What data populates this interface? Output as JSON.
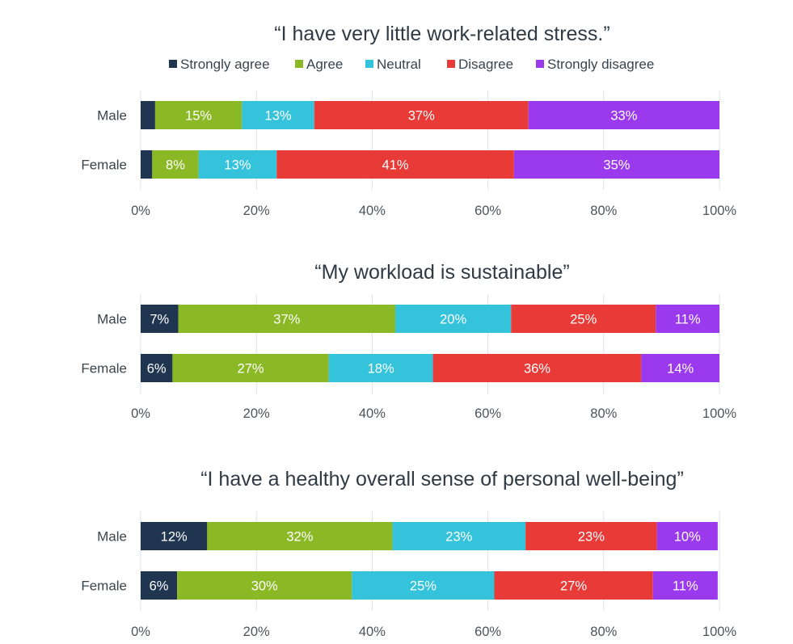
{
  "legend": [
    {
      "label": "Strongly agree",
      "color": "#1f3550"
    },
    {
      "label": "Agree",
      "color": "#8bb925"
    },
    {
      "label": "Neutral",
      "color": "#35c3dc"
    },
    {
      "label": "Disagree",
      "color": "#e83a36"
    },
    {
      "label": "Strongly disagree",
      "color": "#9b3aed"
    }
  ],
  "chart_data": [
    {
      "type": "bar",
      "orientation": "horizontal",
      "stacked": true,
      "title": "“I have very little work-related stress.”",
      "categories": [
        "Male",
        "Female"
      ],
      "series": [
        {
          "name": "Strongly agree",
          "values": [
            2.5,
            2
          ],
          "labels": [
            "",
            ""
          ]
        },
        {
          "name": "Agree",
          "values": [
            15,
            8
          ],
          "labels": [
            "15%",
            "8%"
          ]
        },
        {
          "name": "Neutral",
          "values": [
            12.5,
            13.5
          ],
          "labels": [
            "13%",
            "13%"
          ]
        },
        {
          "name": "Disagree",
          "values": [
            37,
            41
          ],
          "labels": [
            "37%",
            "41%"
          ]
        },
        {
          "name": "Strongly disagree",
          "values": [
            33,
            35.5
          ],
          "labels": [
            "33%",
            "35%"
          ]
        }
      ],
      "xlim": [
        0,
        100
      ],
      "xticks": [
        "0%",
        "20%",
        "40%",
        "60%",
        "80%",
        "100%"
      ],
      "grid": true,
      "legend_position": "top"
    },
    {
      "type": "bar",
      "orientation": "horizontal",
      "stacked": true,
      "title": "“My workload is sustainable”",
      "categories": [
        "Male",
        "Female"
      ],
      "series": [
        {
          "name": "Strongly agree",
          "values": [
            6.5,
            5.5
          ],
          "labels": [
            "7%",
            "6%"
          ]
        },
        {
          "name": "Agree",
          "values": [
            37.5,
            27
          ],
          "labels": [
            "37%",
            "27%"
          ]
        },
        {
          "name": "Neutral",
          "values": [
            20,
            18
          ],
          "labels": [
            "20%",
            "18%"
          ]
        },
        {
          "name": "Disagree",
          "values": [
            25,
            36
          ],
          "labels": [
            "25%",
            "36%"
          ]
        },
        {
          "name": "Strongly disagree",
          "values": [
            11,
            13.5
          ],
          "labels": [
            "11%",
            "14%"
          ]
        }
      ],
      "xlim": [
        0,
        100
      ],
      "xticks": [
        "0%",
        "20%",
        "40%",
        "60%",
        "80%",
        "100%"
      ],
      "grid": true
    },
    {
      "type": "bar",
      "orientation": "horizontal",
      "stacked": true,
      "title": "“I have a healthy overall sense of personal well-being”",
      "categories": [
        "Male",
        "Female"
      ],
      "series": [
        {
          "name": "Strongly agree",
          "values": [
            11.5,
            6.3
          ],
          "labels": [
            "12%",
            "6%"
          ]
        },
        {
          "name": "Agree",
          "values": [
            32,
            30.2
          ],
          "labels": [
            "32%",
            "30%"
          ]
        },
        {
          "name": "Neutral",
          "values": [
            23,
            24.6
          ],
          "labels": [
            "23%",
            "25%"
          ]
        },
        {
          "name": "Disagree",
          "values": [
            22.7,
            27.4
          ],
          "labels": [
            "23%",
            "27%"
          ]
        },
        {
          "name": "Strongly disagree",
          "values": [
            10.5,
            11.2
          ],
          "labels": [
            "10%",
            "11%"
          ]
        }
      ],
      "xlim": [
        0,
        100
      ],
      "xticks": [
        "0%",
        "20%",
        "40%",
        "60%",
        "80%",
        "100%"
      ],
      "grid": true
    }
  ]
}
